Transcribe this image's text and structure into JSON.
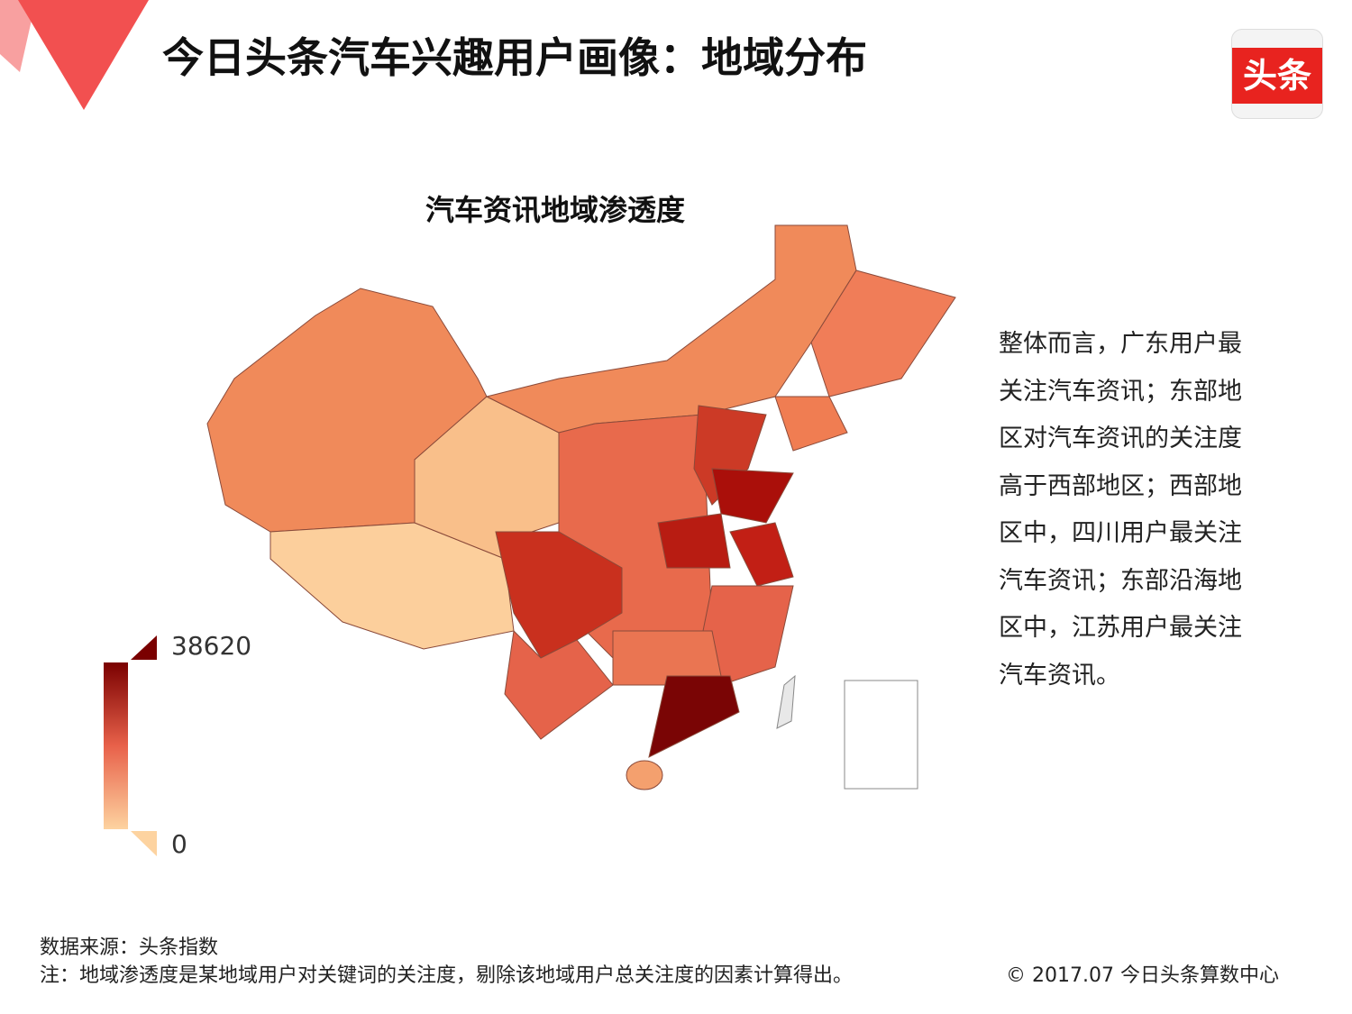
{
  "header": {
    "title": "今日头条汽车兴趣用户画像：地域分布",
    "logo": "头条"
  },
  "map": {
    "title": "汽车资讯地域渗透度",
    "legend": {
      "max": 38620,
      "min": 0
    }
  },
  "description": [
    "整体而言，广东用户最",
    "关注汽车资讯；东部地",
    "区对汽车资讯的关注度",
    "高于西部地区；西部地",
    "区中，四川用户最关注",
    "汽车资讯；东部沿海地",
    "区中，江苏用户最关注",
    "汽车资讯。"
  ],
  "footer": {
    "source": "数据来源：头条指数",
    "note": "注：地域渗透度是某地域用户对关键词的关注度，剔除该地域用户总关注度的因素计算得出。",
    "copyright": "© 2017.07 今日头条算数中心"
  }
}
